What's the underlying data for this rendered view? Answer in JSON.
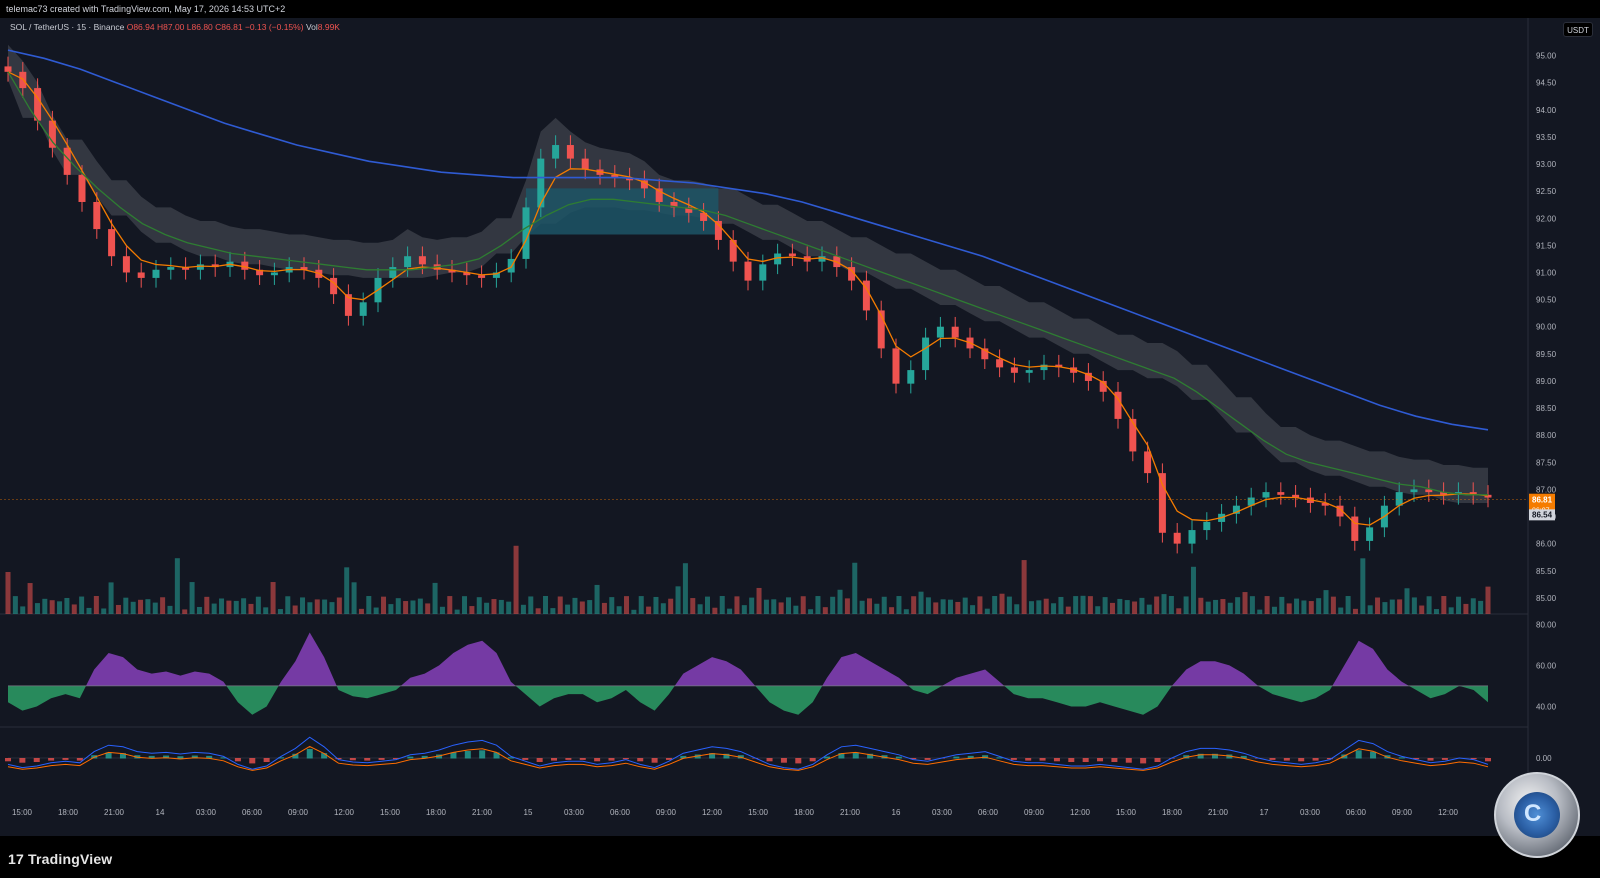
{
  "header": {
    "caption": "telemac73 created with TradingView.com, May 17, 2026 14:53 UTC+2"
  },
  "legend": {
    "symbol": "SOL / TetherUS · 15 · Binance",
    "o": "O86.94",
    "h": "H87.00",
    "l": "L86.80",
    "c": "C86.81",
    "chg": "−0.13 (−0.15%)",
    "vol_label": "Vol",
    "vol": "8.99K"
  },
  "currency_label": "USDT",
  "price_labels": {
    "last": "86.81",
    "countdown": "06:07",
    "other": "86.54"
  },
  "colors": {
    "up": "#26a69a",
    "down": "#ef5350",
    "ema_fast": "#f57c00",
    "ema_mid": "#2e7d32",
    "ema_slow": "#2f5bd3",
    "cloud_grey": "#3a3d47",
    "cloud_teal": "#1d5566",
    "rsi_purple": "#8e44c6",
    "rsi_green": "#2ea86b",
    "macd_line": "#2962ff",
    "signal_line": "#ff6d00"
  },
  "logo": {
    "name": "TradingView"
  },
  "chart_data": {
    "type": "line",
    "title": "",
    "series": [
      {
        "values": [
          94.7,
          94.4,
          93.8,
          93.3,
          92.8,
          92.3,
          91.8,
          91.3,
          91.0,
          90.9,
          91.05,
          91.1,
          91.05,
          91.15,
          91.1,
          91.2,
          91.05,
          90.95,
          91.0,
          91.1,
          91.05,
          90.9,
          90.6,
          90.2,
          90.45,
          90.9,
          91.1,
          91.3,
          91.15,
          91.05,
          91.0,
          90.95,
          90.9,
          91.0,
          91.25,
          92.2,
          93.1,
          93.35,
          93.1,
          92.9,
          92.8,
          92.75,
          92.7,
          92.55,
          92.3,
          92.2,
          92.1,
          91.95,
          91.6,
          91.2,
          90.85,
          91.15,
          91.35,
          91.3,
          91.2,
          91.3,
          91.1,
          90.85,
          90.3,
          89.6,
          88.95,
          89.2,
          89.8,
          90.0,
          89.8,
          89.6,
          89.4,
          89.25,
          89.15,
          89.2,
          89.3,
          89.25,
          89.15,
          89.0,
          88.8,
          88.3,
          87.7,
          87.3,
          86.2,
          86.0,
          86.25,
          86.4,
          86.55,
          86.7,
          86.85,
          86.95,
          86.9,
          86.85,
          86.75,
          86.7,
          86.5,
          86.05,
          86.3,
          86.7,
          86.95,
          87.0,
          86.95,
          86.9,
          86.95,
          86.9,
          86.85
        ],
        "name": ""
      },
      {
        "values": [
          94.7,
          94.0,
          93.4,
          92.95,
          92.55,
          92.2,
          91.9,
          91.7,
          91.55,
          91.45,
          91.35,
          91.3,
          91.25,
          91.2,
          91.15,
          91.1,
          91.05,
          91.05,
          91.05,
          91.1,
          91.15,
          91.25,
          91.5,
          91.8,
          92.05,
          92.25,
          92.35,
          92.35,
          92.3,
          92.25,
          92.2,
          92.15,
          92.05,
          91.9,
          91.75,
          91.6,
          91.45,
          91.3,
          91.15,
          91.0,
          90.85,
          90.7,
          90.55,
          90.4,
          90.25,
          90.1,
          89.95,
          89.8,
          89.65,
          89.5,
          89.35,
          89.2,
          89.05,
          88.8,
          88.5,
          88.2,
          87.9,
          87.65,
          87.5,
          87.4,
          87.3,
          87.2,
          87.1,
          87.05,
          86.95,
          86.9,
          86.9
        ],
        "name": ""
      },
      {
        "values": [
          95.1,
          94.95,
          94.75,
          94.5,
          94.25,
          94.0,
          93.75,
          93.55,
          93.35,
          93.2,
          93.05,
          92.95,
          92.85,
          92.8,
          92.75,
          92.75,
          92.75,
          92.75,
          92.7,
          92.65,
          92.55,
          92.45,
          92.3,
          92.1,
          91.9,
          91.7,
          91.5,
          91.3,
          91.05,
          90.8,
          90.55,
          90.3,
          90.05,
          89.8,
          89.55,
          89.3,
          89.05,
          88.8,
          88.55,
          88.35,
          88.2,
          88.1
        ],
        "name": ""
      }
    ],
    "y_ticks": [
      "95.00",
      "94.50",
      "94.00",
      "93.50",
      "93.00",
      "92.50",
      "92.00",
      "91.50",
      "91.00",
      "90.50",
      "90.00",
      "89.50",
      "89.00",
      "88.50",
      "88.00",
      "87.50",
      "87.00",
      "86.50",
      "86.00",
      "85.50",
      "85.00"
    ],
    "ylim": [
      84.85,
      95.25
    ],
    "x_ticks": [
      "15:00",
      "18:00",
      "21:00",
      "14",
      "03:00",
      "06:00",
      "09:00",
      "12:00",
      "15:00",
      "18:00",
      "21:00",
      "15",
      "03:00",
      "06:00",
      "09:00",
      "12:00",
      "15:00",
      "18:00",
      "21:00",
      "16",
      "03:00",
      "06:00",
      "09:00",
      "12:00",
      "15:00",
      "18:00",
      "21:00",
      "17",
      "03:00",
      "06:00",
      "09:00",
      "12:00"
    ],
    "rsi_ticks": [
      "80.00",
      "60.00",
      "40.00"
    ],
    "rsi_values": [
      42,
      38,
      40,
      44,
      46,
      44,
      58,
      66,
      64,
      58,
      56,
      57,
      55,
      57,
      56,
      52,
      42,
      36,
      40,
      52,
      62,
      76,
      64,
      48,
      45,
      44,
      46,
      48,
      54,
      56,
      60,
      66,
      70,
      72,
      66,
      52,
      46,
      40,
      44,
      46,
      46,
      42,
      44,
      48,
      42,
      38,
      46,
      56,
      60,
      64,
      62,
      58,
      50,
      42,
      38,
      36,
      42,
      54,
      64,
      66,
      62,
      58,
      54,
      48,
      46,
      50,
      54,
      56,
      58,
      52,
      46,
      44,
      44,
      42,
      40,
      40,
      42,
      40,
      38,
      36,
      40,
      50,
      58,
      62,
      62,
      60,
      56,
      50,
      46,
      44,
      42,
      44,
      48,
      60,
      72,
      68,
      58,
      52,
      48,
      44,
      46,
      50,
      48,
      42
    ],
    "macd_ticks": [
      "0.00"
    ],
    "grid": false,
    "legend_position": "none"
  }
}
